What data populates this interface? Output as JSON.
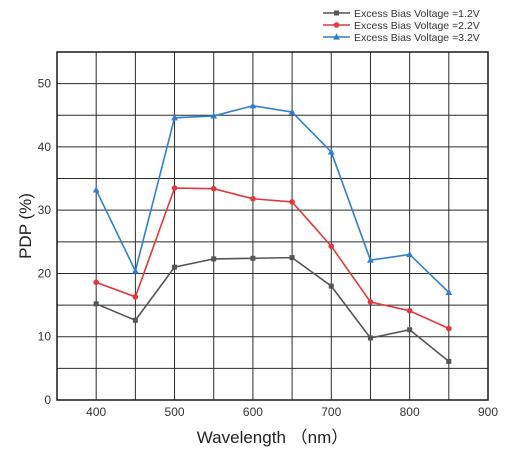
{
  "chart_data": {
    "type": "line",
    "xlabel": "Wavelength （nm）",
    "ylabel": "PDP (%)",
    "xlim": [
      350,
      900
    ],
    "ylim": [
      0,
      55
    ],
    "grid": true,
    "legend_position": "top-right",
    "x_ticks": [
      "400",
      "500",
      "600",
      "700",
      "800",
      "900"
    ],
    "y_ticks": [
      "0",
      "10",
      "20",
      "30",
      "40",
      "50"
    ],
    "x": [
      400,
      450,
      500,
      550,
      600,
      650,
      700,
      750,
      800,
      850
    ],
    "series": [
      {
        "name": "Excess Bias Voltage =1.2V",
        "color": "#555555",
        "marker": "square",
        "values": [
          15.2,
          12.6,
          21.0,
          22.3,
          22.4,
          22.5,
          18.0,
          9.8,
          11.1,
          6.1
        ]
      },
      {
        "name": "Excess Bias Voltage =2.2V",
        "color": "#e0383b",
        "marker": "circle",
        "values": [
          18.6,
          16.3,
          33.5,
          33.4,
          31.8,
          31.3,
          24.3,
          15.5,
          14.1,
          11.3
        ]
      },
      {
        "name": "Excess Bias Voltage =3.2V",
        "color": "#2f7fd1",
        "marker": "triangle",
        "values": [
          33.2,
          20.4,
          44.6,
          44.9,
          46.5,
          45.5,
          39.2,
          22.1,
          23.0,
          17.0
        ]
      }
    ]
  }
}
